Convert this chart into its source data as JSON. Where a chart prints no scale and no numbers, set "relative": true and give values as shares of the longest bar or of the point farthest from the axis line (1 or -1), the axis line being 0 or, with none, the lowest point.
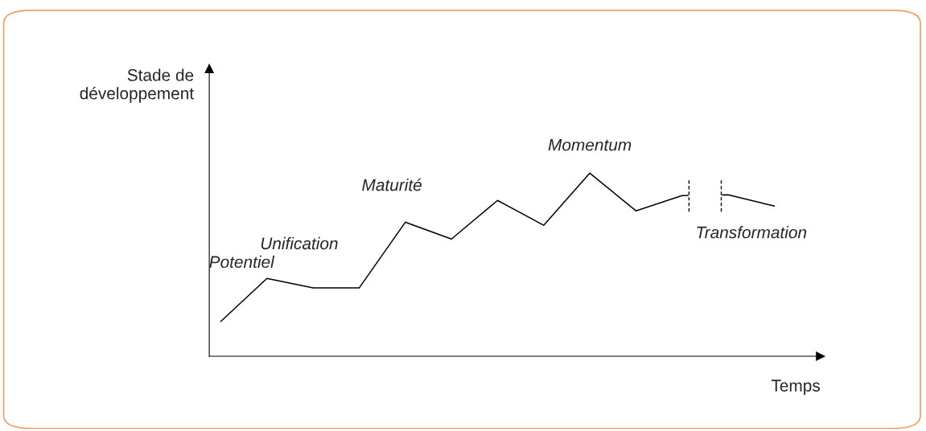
{
  "chart_data": {
    "type": "line",
    "relative": true,
    "xlabel": "Temps",
    "ylabel": "Stade de\ndéveloppement",
    "marker": "none",
    "line_style": "solid",
    "categories": [
      null,
      null,
      null,
      null,
      null,
      null,
      null,
      null,
      null,
      null,
      null,
      null,
      null
    ],
    "series": [
      {
        "color": "#000000",
        "values": [
          0.19,
          0.425,
          0.373,
          0.373,
          0.732,
          0.64,
          0.851,
          0.715,
          1.0,
          0.794,
          0.877,
          0.882,
          0.82
        ]
      }
    ],
    "annotations": [
      "Potentiel",
      "Unification",
      "Maturité",
      "Momentum",
      "Transformation"
    ]
  }
}
